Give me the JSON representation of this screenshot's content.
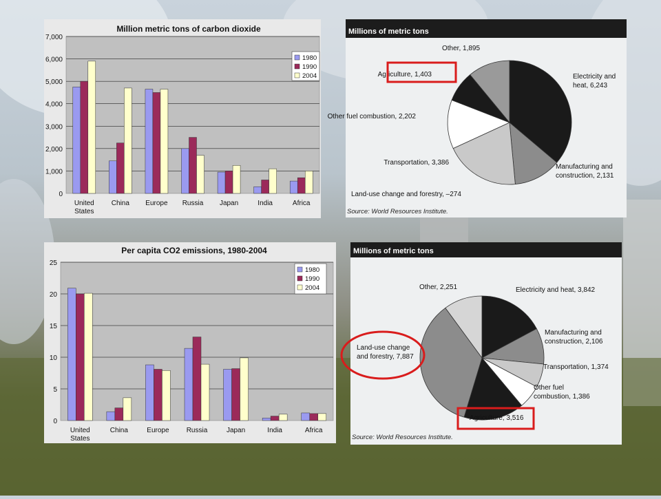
{
  "chart_data": [
    {
      "type": "bar",
      "title": "Million metric tons of carbon dioxide",
      "categories": [
        "United States",
        "China",
        "Europe",
        "Russia",
        "Japan",
        "India",
        "Africa"
      ],
      "category_lines": [
        [
          "United",
          "States"
        ],
        [
          "China"
        ],
        [
          "Europe"
        ],
        [
          "Russia"
        ],
        [
          "Japan"
        ],
        [
          "India"
        ],
        [
          "Africa"
        ]
      ],
      "series": [
        {
          "name": "1980",
          "color": "#9a9af0",
          "values": [
            4750,
            1450,
            4650,
            2000,
            950,
            300,
            550
          ]
        },
        {
          "name": "1990",
          "color": "#9b2a5a",
          "values": [
            5000,
            2250,
            4500,
            2500,
            1000,
            600,
            700
          ]
        },
        {
          "name": "2004",
          "color": "#ffffcc",
          "values": [
            5900,
            4700,
            4650,
            1700,
            1250,
            1100,
            1000
          ]
        }
      ],
      "yticks": [
        "0",
        "1,000",
        "2,000",
        "3,000",
        "4,000",
        "5,000",
        "6,000",
        "7,000"
      ],
      "ylim": [
        0,
        7000
      ],
      "xlabel": "",
      "ylabel": "",
      "grid": true,
      "legend": "top-right"
    },
    {
      "type": "pie",
      "header": "Millions of metric tons",
      "labels": [
        "Electricity and heat, 6,243",
        "Manufacturing and construction, 2,131",
        "Transportation, 3,386",
        "Other fuel combustion, 2,202",
        "Agriculture, 1,403",
        "Other, 1,895",
        "Land-use change and forestry, –274"
      ],
      "values": [
        6243,
        2131,
        3386,
        2202,
        1403,
        1895,
        -274
      ],
      "colors": [
        "#1a1a1a",
        "#8c8c8c",
        "#c9c9c9",
        "#ffffff",
        "#1a1a1a",
        "#9a9a9a"
      ],
      "highlighted": "Agriculture, 1,403",
      "source": "Source: World Resources Institute."
    },
    {
      "type": "bar",
      "title": "Per capita CO2 emissions, 1980-2004",
      "categories": [
        "United States",
        "China",
        "Europe",
        "Russia",
        "Japan",
        "India",
        "Africa"
      ],
      "category_lines": [
        [
          "United",
          "States"
        ],
        [
          "China"
        ],
        [
          "Europe"
        ],
        [
          "Russia"
        ],
        [
          "Japan"
        ],
        [
          "India"
        ],
        [
          "Africa"
        ]
      ],
      "series": [
        {
          "name": "1980",
          "color": "#9a9af0",
          "values": [
            20.9,
            1.4,
            8.8,
            11.4,
            8.1,
            0.4,
            1.2
          ]
        },
        {
          "name": "1990",
          "color": "#9b2a5a",
          "values": [
            20.0,
            2.0,
            8.1,
            13.2,
            8.2,
            0.7,
            1.1
          ]
        },
        {
          "name": "2004",
          "color": "#ffffcc",
          "values": [
            20.1,
            3.6,
            7.9,
            8.9,
            9.9,
            1.0,
            1.1
          ]
        }
      ],
      "yticks": [
        "0",
        "5",
        "10",
        "15",
        "20",
        "25"
      ],
      "ylim": [
        0,
        25
      ],
      "xlabel": "",
      "ylabel": "",
      "grid": true,
      "legend": "top-right"
    },
    {
      "type": "pie",
      "header": "Millions of metric tons",
      "labels": [
        "Electricity and heat, 3,842",
        "Manufacturing and construction, 2,106",
        "Transportation, 1,374",
        "Other fuel combustion, 1,386",
        "Agriculture, 3,516",
        "Land-use change and forestry, 7,887",
        "Other, 2,251"
      ],
      "values": [
        3842,
        2106,
        1374,
        1386,
        3516,
        7887,
        2251
      ],
      "colors": [
        "#1a1a1a",
        "#8c8c8c",
        "#c9c9c9",
        "#ffffff",
        "#1a1a1a",
        "#8c8c8c",
        "#d6d6d6"
      ],
      "highlighted": [
        "Land-use change and forestry, 7,887",
        "Agriculture, 3,516"
      ],
      "source": "Source: World Resources Institute."
    }
  ]
}
